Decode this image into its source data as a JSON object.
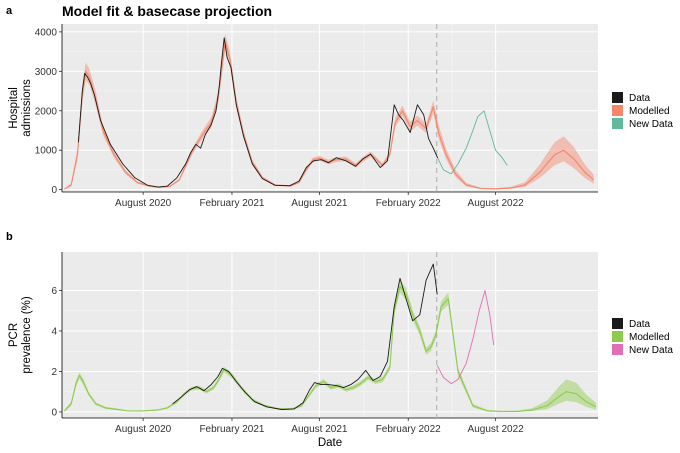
{
  "figure": {
    "title": "Model fit & basecase projection",
    "colors": {
      "panel_bg": "#ebebeb",
      "grid": "#ffffff",
      "data": "#1a1a1a",
      "projection_line": "#b3b3b3"
    }
  },
  "chart_data": [
    {
      "panel": "a",
      "type": "line",
      "title": "",
      "xlabel": "",
      "ylabel": "Hospital admissions",
      "ylabel_lines": [
        "Hospital",
        "admissions"
      ],
      "x_tick_labels": [
        "August 2020",
        "February 2021",
        "August 2021",
        "February 2022",
        "August 2022"
      ],
      "x_ticks": [
        "2020-08-01",
        "2021-02-01",
        "2021-08-01",
        "2022-02-01",
        "2022-08-01"
      ],
      "xlim": [
        "2020-02-15",
        "2023-03-01"
      ],
      "y_ticks": [
        0,
        1000,
        2000,
        3000,
        4000
      ],
      "y_tick_labels": [
        "0",
        "1000",
        "2000",
        "3000",
        "4000"
      ],
      "ylim": [
        -60,
        4200
      ],
      "projection_start": "2022-04-01",
      "grid": true,
      "legend": {
        "position": "right",
        "entries": [
          {
            "label": "Data",
            "color": "#1a1a1a"
          },
          {
            "label": "Modelled",
            "color": "#f4866a"
          },
          {
            "label": "New Data",
            "color": "#5fb99a"
          }
        ]
      },
      "series": [
        {
          "name": "Modelled",
          "color": "#f4866a",
          "x": [
            "2020-02-20",
            "2020-03-05",
            "2020-03-18",
            "2020-03-28",
            "2020-04-04",
            "2020-04-12",
            "2020-04-25",
            "2020-05-10",
            "2020-06-01",
            "2020-06-25",
            "2020-07-20",
            "2020-08-15",
            "2020-09-05",
            "2020-09-25",
            "2020-10-15",
            "2020-11-01",
            "2020-11-10",
            "2020-11-22",
            "2020-12-05",
            "2020-12-20",
            "2021-01-03",
            "2021-01-10",
            "2021-01-18",
            "2021-01-28",
            "2021-02-10",
            "2021-02-25",
            "2021-03-15",
            "2021-04-05",
            "2021-05-01",
            "2021-06-01",
            "2021-06-20",
            "2021-07-05",
            "2021-07-18",
            "2021-08-01",
            "2021-08-20",
            "2021-09-05",
            "2021-09-25",
            "2021-10-15",
            "2021-10-30",
            "2021-11-15",
            "2021-12-10",
            "2021-12-25",
            "2022-01-05",
            "2022-01-20",
            "2022-02-05",
            "2022-02-20",
            "2022-03-10",
            "2022-03-25",
            "2022-04-05",
            "2022-04-20",
            "2022-05-10",
            "2022-06-01",
            "2022-07-01",
            "2022-08-01",
            "2022-09-01",
            "2022-10-01",
            "2022-11-01",
            "2022-12-01",
            "2022-12-20",
            "2023-01-10",
            "2023-02-01",
            "2023-02-20"
          ],
          "y": [
            10,
            120,
            900,
            2400,
            3000,
            2850,
            2300,
            1500,
            900,
            450,
            180,
            90,
            60,
            80,
            250,
            700,
            950,
            1200,
            1450,
            1700,
            2300,
            3000,
            3750,
            3300,
            2200,
            1400,
            700,
            300,
            120,
            90,
            180,
            500,
            750,
            800,
            700,
            760,
            780,
            620,
            760,
            900,
            620,
            900,
            1700,
            2000,
            1600,
            1750,
            1550,
            2100,
            1450,
            900,
            400,
            120,
            30,
            20,
            40,
            120,
            450,
            880,
            1000,
            780,
            450,
            250
          ],
          "lower": [
            0,
            80,
            750,
            2200,
            2780,
            2650,
            2120,
            1380,
            820,
            400,
            150,
            70,
            45,
            65,
            220,
            640,
            880,
            1110,
            1340,
            1570,
            2150,
            2800,
            3550,
            3100,
            2050,
            1300,
            640,
            260,
            100,
            75,
            160,
            460,
            690,
            740,
            640,
            700,
            720,
            570,
            700,
            830,
            570,
            830,
            1580,
            1870,
            1480,
            1620,
            1430,
            1940,
            1300,
            780,
            320,
            80,
            15,
            8,
            20,
            70,
            300,
            620,
            720,
            540,
            300,
            150
          ],
          "upper": [
            20,
            160,
            1050,
            2600,
            3220,
            3060,
            2480,
            1620,
            980,
            500,
            210,
            110,
            75,
            95,
            280,
            760,
            1020,
            1290,
            1560,
            1830,
            2450,
            3200,
            3950,
            3500,
            2350,
            1500,
            760,
            340,
            140,
            105,
            200,
            540,
            810,
            860,
            760,
            820,
            840,
            670,
            820,
            970,
            670,
            970,
            1820,
            2130,
            1720,
            1880,
            1670,
            2260,
            1650,
            1050,
            500,
            170,
            50,
            35,
            70,
            190,
            650,
            1200,
            1350,
            1080,
            650,
            380
          ]
        },
        {
          "name": "Data",
          "color": "#1a1a1a",
          "x": [
            "2020-03-20",
            "2020-03-28",
            "2020-04-02",
            "2020-04-08",
            "2020-04-14",
            "2020-04-22",
            "2020-05-05",
            "2020-05-25",
            "2020-06-20",
            "2020-07-15",
            "2020-08-10",
            "2020-09-01",
            "2020-09-20",
            "2020-10-10",
            "2020-10-28",
            "2020-11-08",
            "2020-11-18",
            "2020-11-28",
            "2020-12-08",
            "2020-12-20",
            "2020-12-30",
            "2021-01-06",
            "2021-01-10",
            "2021-01-16",
            "2021-01-22",
            "2021-01-30",
            "2021-02-10",
            "2021-02-25",
            "2021-03-15",
            "2021-04-05",
            "2021-05-01",
            "2021-06-01",
            "2021-06-20",
            "2021-07-05",
            "2021-07-20",
            "2021-08-05",
            "2021-08-20",
            "2021-09-05",
            "2021-09-25",
            "2021-10-15",
            "2021-10-30",
            "2021-11-15",
            "2021-12-05",
            "2021-12-20",
            "2022-01-03",
            "2022-01-12",
            "2022-01-22",
            "2022-02-05",
            "2022-02-20",
            "2022-03-05",
            "2022-03-15",
            "2022-03-25",
            "2022-04-03"
          ],
          "y": [
            1200,
            2500,
            2950,
            2850,
            2700,
            2400,
            1750,
            1150,
            650,
            300,
            110,
            65,
            90,
            300,
            650,
            950,
            1150,
            1050,
            1400,
            1650,
            2000,
            2650,
            3200,
            3850,
            3350,
            3100,
            2150,
            1350,
            650,
            280,
            110,
            100,
            220,
            560,
            730,
            760,
            680,
            810,
            730,
            590,
            780,
            900,
            560,
            730,
            2150,
            1900,
            1750,
            1450,
            2150,
            1900,
            1300,
            1050,
            800
          ]
        },
        {
          "name": "New Data",
          "color": "#5fb99a",
          "x": [
            "2022-04-03",
            "2022-04-15",
            "2022-05-01",
            "2022-05-15",
            "2022-06-01",
            "2022-06-15",
            "2022-06-25",
            "2022-07-08",
            "2022-07-20",
            "2022-08-01",
            "2022-08-15",
            "2022-08-25"
          ],
          "y": [
            800,
            500,
            400,
            650,
            1050,
            1500,
            1850,
            2000,
            1500,
            1000,
            800,
            620
          ]
        }
      ]
    },
    {
      "panel": "b",
      "type": "line",
      "title": "",
      "xlabel": "Date",
      "ylabel": "PCR prevalence (%)",
      "ylabel_lines": [
        "PCR",
        "prevalence (%)"
      ],
      "x_tick_labels": [
        "August 2020",
        "February 2021",
        "August 2021",
        "February 2022",
        "August 2022"
      ],
      "x_ticks": [
        "2020-08-01",
        "2021-02-01",
        "2021-08-01",
        "2022-02-01",
        "2022-08-01"
      ],
      "xlim": [
        "2020-02-15",
        "2023-03-01"
      ],
      "y_ticks": [
        0,
        2,
        4,
        6
      ],
      "y_tick_labels": [
        "0",
        "2",
        "4",
        "6"
      ],
      "ylim": [
        -0.3,
        7.9
      ],
      "projection_start": "2022-04-01",
      "grid": true,
      "legend": {
        "position": "right",
        "entries": [
          {
            "label": "Data",
            "color": "#1a1a1a"
          },
          {
            "label": "Modelled",
            "color": "#8dcb4e"
          },
          {
            "label": "New Data",
            "color": "#e06fb3"
          }
        ]
      },
      "series": [
        {
          "name": "Modelled",
          "color": "#8dcb4e",
          "x": [
            "2020-02-20",
            "2020-03-05",
            "2020-03-15",
            "2020-03-22",
            "2020-03-30",
            "2020-04-10",
            "2020-04-25",
            "2020-05-15",
            "2020-06-01",
            "2020-07-01",
            "2020-08-01",
            "2020-09-01",
            "2020-09-20",
            "2020-10-10",
            "2020-10-25",
            "2020-11-10",
            "2020-11-25",
            "2020-12-10",
            "2020-12-25",
            "2021-01-05",
            "2021-01-15",
            "2021-02-01",
            "2021-02-20",
            "2021-03-15",
            "2021-04-10",
            "2021-05-10",
            "2021-06-05",
            "2021-06-25",
            "2021-07-10",
            "2021-07-25",
            "2021-08-10",
            "2021-08-25",
            "2021-09-10",
            "2021-09-25",
            "2021-10-10",
            "2021-10-25",
            "2021-11-10",
            "2021-11-25",
            "2021-12-10",
            "2021-12-25",
            "2022-01-03",
            "2022-01-15",
            "2022-01-28",
            "2022-02-10",
            "2022-02-25",
            "2022-03-10",
            "2022-03-20",
            "2022-03-30",
            "2022-04-10",
            "2022-04-25",
            "2022-05-15",
            "2022-06-15",
            "2022-07-15",
            "2022-08-15",
            "2022-09-15",
            "2022-10-15",
            "2022-11-15",
            "2022-12-10",
            "2022-12-25",
            "2023-01-15",
            "2023-02-05",
            "2023-02-25"
          ],
          "y": [
            0.05,
            0.4,
            1.4,
            1.8,
            1.5,
            0.9,
            0.4,
            0.2,
            0.15,
            0.05,
            0.05,
            0.1,
            0.2,
            0.5,
            0.9,
            1.15,
            1.2,
            1.0,
            1.2,
            1.6,
            2.1,
            1.8,
            1.2,
            0.6,
            0.3,
            0.15,
            0.15,
            0.3,
            0.8,
            1.3,
            1.5,
            1.2,
            1.3,
            1.1,
            1.2,
            1.4,
            1.7,
            1.5,
            1.6,
            2.2,
            5.0,
            6.2,
            5.8,
            4.8,
            4.0,
            3.0,
            3.2,
            3.8,
            5.2,
            5.6,
            2.0,
            0.3,
            0.05,
            0.02,
            0.02,
            0.1,
            0.3,
            0.75,
            1.0,
            0.9,
            0.5,
            0.25
          ],
          "lower": [
            0,
            0.3,
            1.25,
            1.65,
            1.35,
            0.8,
            0.33,
            0.15,
            0.1,
            0.03,
            0.03,
            0.07,
            0.15,
            0.43,
            0.82,
            1.06,
            1.1,
            0.91,
            1.1,
            1.48,
            1.96,
            1.66,
            1.1,
            0.52,
            0.24,
            0.11,
            0.1,
            0.24,
            0.72,
            1.2,
            1.38,
            1.1,
            1.19,
            1.0,
            1.09,
            1.28,
            1.58,
            1.38,
            1.47,
            2.05,
            4.75,
            5.9,
            5.5,
            4.55,
            3.78,
            2.82,
            3.0,
            3.6,
            4.95,
            5.3,
            1.8,
            0.22,
            0.02,
            0.0,
            0.0,
            0.04,
            0.13,
            0.4,
            0.55,
            0.48,
            0.25,
            0.1
          ],
          "upper": [
            0.1,
            0.5,
            1.55,
            1.95,
            1.65,
            1.0,
            0.47,
            0.25,
            0.2,
            0.07,
            0.07,
            0.13,
            0.25,
            0.57,
            0.98,
            1.24,
            1.3,
            1.09,
            1.3,
            1.72,
            2.24,
            1.94,
            1.3,
            0.68,
            0.36,
            0.19,
            0.2,
            0.36,
            0.88,
            1.4,
            1.62,
            1.3,
            1.41,
            1.2,
            1.31,
            1.52,
            1.82,
            1.62,
            1.73,
            2.35,
            5.25,
            6.5,
            6.1,
            5.05,
            4.22,
            3.18,
            3.4,
            4.0,
            5.45,
            5.9,
            2.2,
            0.4,
            0.1,
            0.06,
            0.07,
            0.18,
            0.55,
            1.25,
            1.6,
            1.45,
            0.85,
            0.45
          ]
        },
        {
          "name": "Data",
          "color": "#1a1a1a",
          "x": [
            "2020-10-01",
            "2020-10-20",
            "2020-11-05",
            "2020-11-20",
            "2020-12-05",
            "2020-12-20",
            "2021-01-03",
            "2021-01-12",
            "2021-01-25",
            "2021-02-10",
            "2021-03-01",
            "2021-03-20",
            "2021-04-15",
            "2021-05-15",
            "2021-06-10",
            "2021-06-28",
            "2021-07-12",
            "2021-07-22",
            "2021-08-05",
            "2021-08-20",
            "2021-09-05",
            "2021-09-20",
            "2021-10-05",
            "2021-10-20",
            "2021-11-05",
            "2021-11-20",
            "2021-12-05",
            "2021-12-20",
            "2022-01-03",
            "2022-01-15",
            "2022-01-25",
            "2022-02-10",
            "2022-02-25",
            "2022-03-10",
            "2022-03-25",
            "2022-04-02"
          ],
          "y": [
            0.4,
            0.75,
            1.1,
            1.25,
            1.05,
            1.35,
            1.75,
            2.15,
            2.0,
            1.5,
            0.95,
            0.5,
            0.25,
            0.12,
            0.15,
            0.45,
            1.1,
            1.45,
            1.35,
            1.35,
            1.3,
            1.2,
            1.35,
            1.6,
            2.05,
            1.55,
            1.75,
            2.5,
            5.2,
            6.6,
            5.8,
            4.5,
            4.8,
            6.5,
            7.3,
            5.8
          ]
        },
        {
          "name": "New Data",
          "color": "#e06fb3",
          "x": [
            "2022-04-02",
            "2022-04-15",
            "2022-05-01",
            "2022-05-15",
            "2022-06-01",
            "2022-06-15",
            "2022-06-28",
            "2022-07-10",
            "2022-07-20",
            "2022-07-28"
          ],
          "y": [
            2.3,
            1.7,
            1.4,
            1.6,
            2.4,
            3.6,
            5.0,
            6.0,
            4.8,
            3.3
          ]
        }
      ]
    }
  ]
}
